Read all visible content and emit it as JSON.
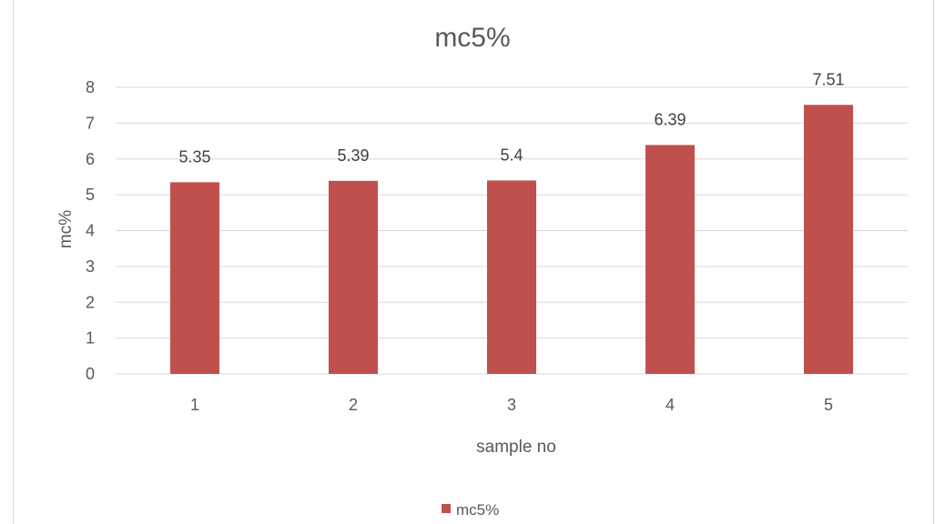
{
  "chart_data": {
    "type": "bar",
    "title": "mc5%",
    "xlabel": "sample no",
    "ylabel": "mc%",
    "categories": [
      "1",
      "2",
      "3",
      "4",
      "5"
    ],
    "series": [
      {
        "name": "mc5%",
        "values": [
          5.35,
          5.39,
          5.4,
          6.39,
          7.51
        ],
        "color": "#c0504d"
      }
    ],
    "data_labels": [
      "5.35",
      "5.39",
      "5.4",
      "6.39",
      "7.51"
    ],
    "ylim": [
      0,
      8
    ],
    "yticks": [
      0,
      1,
      2,
      3,
      4,
      5,
      6,
      7,
      8
    ],
    "grid": true,
    "legend_position": "bottom"
  }
}
